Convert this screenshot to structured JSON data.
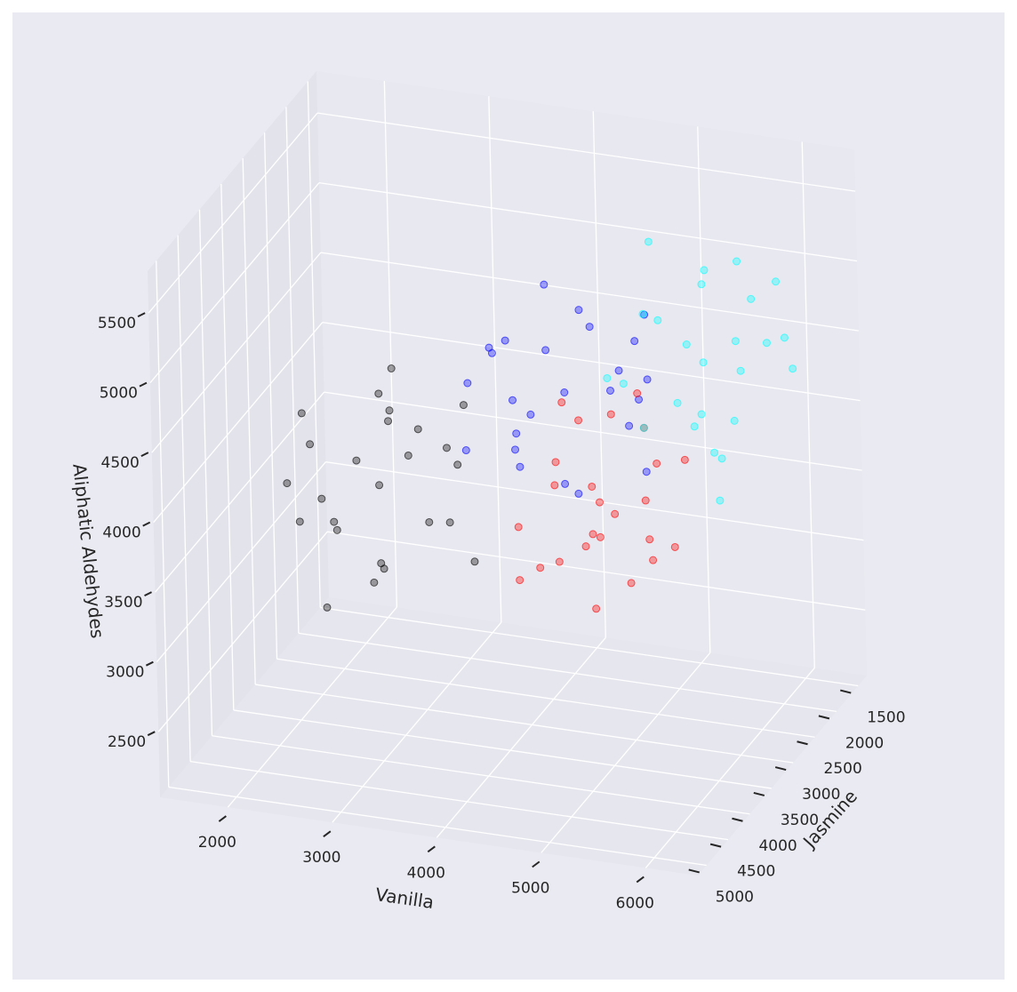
{
  "chart_data": {
    "type": "scatter3d",
    "xlabel": "Vanilla",
    "ylabel": "Jasmine",
    "zlabel": "Aliphatic Aldehydes",
    "xlim": [
      1350,
      6500
    ],
    "ylim": [
      1300,
      5200
    ],
    "zlim": [
      2030,
      5800
    ],
    "xticks": [
      2000,
      3000,
      4000,
      5000,
      6000
    ],
    "yticks": [
      1500,
      2000,
      2500,
      3000,
      3500,
      4000,
      4500,
      5000
    ],
    "zticks": [
      2500,
      3000,
      3500,
      4000,
      4500,
      5000,
      5500
    ],
    "grid": true,
    "series": [
      {
        "color": "#000000",
        "x": [
          2800,
          3100,
          2400,
          3400,
          2600,
          2900,
          2100,
          3300,
          2500,
          3000,
          2700,
          3600,
          2200,
          3200,
          2300,
          2800,
          3500,
          2000,
          3100,
          2600,
          3700,
          1900,
          2900,
          2400,
          3300
        ],
        "y": [
          3500,
          3300,
          3600,
          3800,
          3000,
          3900,
          3400,
          3100,
          4100,
          3700,
          3200,
          3600,
          3900,
          2900,
          3300,
          4000,
          3200,
          3700,
          4200,
          2800,
          3500,
          3100,
          3400,
          3800,
          4000
        ],
        "z": [
          3800,
          4160,
          3530,
          3710,
          4250,
          3260,
          3980,
          3440,
          3890,
          4430,
          3080,
          4070,
          3620,
          3890,
          3350,
          4160,
          4340,
          3800,
          3530,
          3980,
          3350,
          4070,
          4610,
          2990,
          4250
        ]
      },
      {
        "color": "#0000ff",
        "x": [
          4300,
          4000,
          4700,
          3700,
          4500,
          4200,
          5000,
          3800,
          4600,
          4100,
          4400,
          3500,
          4900,
          3900,
          4800,
          4300,
          3600,
          5100,
          4000,
          4500,
          3400,
          5200,
          4200,
          4700,
          3800
        ],
        "y": [
          2800,
          3200,
          2500,
          2700,
          3300,
          2200,
          3000,
          2400,
          2900,
          3500,
          2000,
          3100,
          2600,
          2900,
          2300,
          3200,
          3400,
          2800,
          2500,
          3000,
          2300,
          3100,
          3700,
          1900,
          3300
        ],
        "z": [
          4370,
          4190,
          4460,
          4640,
          3920,
          4730,
          4280,
          4010,
          4910,
          4550,
          4100,
          4460,
          4730,
          3830,
          4190,
          4820,
          4100,
          4550,
          5000,
          3740,
          4370,
          4010,
          4280,
          4640,
          4820
        ]
      },
      {
        "color": "#ff0000",
        "x": [
          4700,
          4500,
          4800,
          5000,
          4200,
          5100,
          4600,
          4300,
          5300,
          4900,
          4400,
          4800,
          5100,
          4100,
          4500,
          5200,
          4400,
          4900,
          5400,
          4000,
          4700,
          4300,
          4600,
          5000,
          5200
        ],
        "y": [
          3000,
          2700,
          3400,
          2400,
          3200,
          2900,
          3700,
          2500,
          3300,
          2800,
          3100,
          2200,
          3600,
          2600,
          3500,
          3000,
          2300,
          3800,
          2700,
          3200,
          2100,
          3900,
          2900,
          3400,
          2500
        ],
        "z": [
          3700,
          3340,
          3970,
          3790,
          3250,
          4240,
          3520,
          4060,
          3610,
          3070,
          4420,
          3430,
          3880,
          3610,
          4150,
          3340,
          3160,
          3700,
          3970,
          3520,
          4150,
          3430,
          2890,
          4510,
          3250
        ]
      },
      {
        "color": "#00ffff",
        "x": [
          5300,
          5700,
          5000,
          5200,
          5800,
          4700,
          5500,
          4900,
          5400,
          6000,
          4500,
          5600,
          5100,
          5400,
          4800,
          5700,
          5900,
          5300,
          5000,
          5500,
          4800,
          5600,
          6200,
          4400,
          5800
        ],
        "y": [
          2000,
          2200,
          1900,
          1700,
          2500,
          1600,
          2100,
          2400,
          1400,
          1800,
          2300,
          1900,
          1600,
          2600,
          2200,
          1500,
          2300,
          1800,
          1300,
          2700,
          2000,
          2400,
          2100,
          1700,
          1500
        ],
        "z": [
          4400,
          4670,
          4040,
          4940,
          4220,
          4490,
          3770,
          4850,
          4130,
          4580,
          4310,
          5120,
          3860,
          4760,
          3950,
          4400,
          5030,
          3680,
          4670,
          4220,
          5210,
          3590,
          4490,
          4040,
          4850
        ]
      }
    ]
  }
}
